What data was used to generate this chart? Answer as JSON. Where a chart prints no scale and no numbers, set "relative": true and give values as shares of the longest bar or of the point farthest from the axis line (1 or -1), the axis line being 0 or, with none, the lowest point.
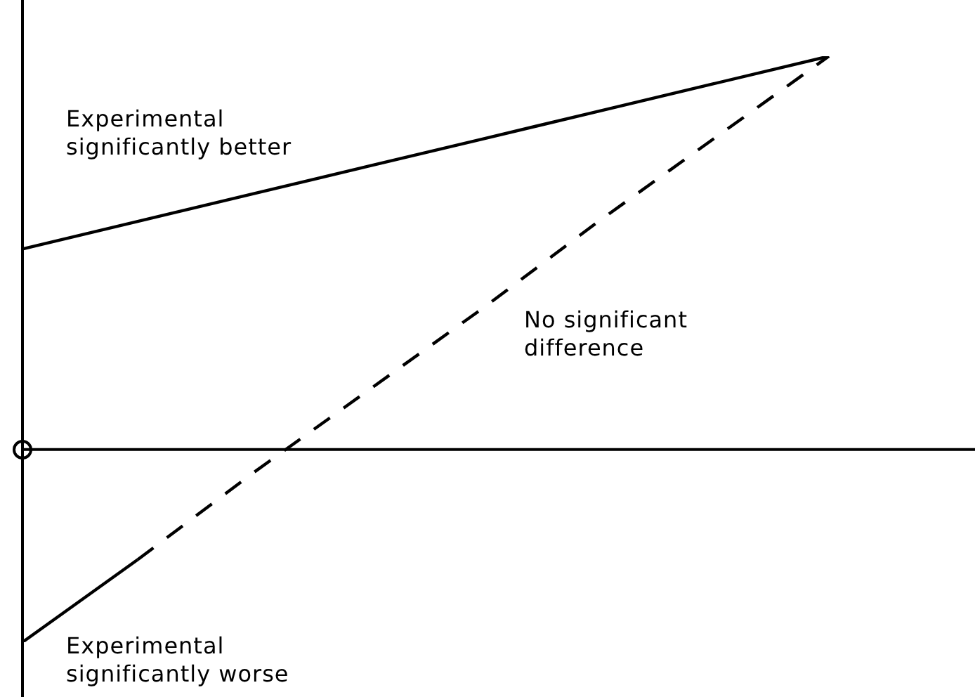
{
  "chart_data": {
    "type": "line",
    "relative": true,
    "marker": "none",
    "legend": false,
    "annotations": [
      "Experimental significantly better",
      "No significant difference",
      "Experimental significantly worse"
    ],
    "categories": [
      null,
      null,
      null,
      null,
      null,
      null,
      null,
      null
    ],
    "series": [
      {
        "color": "#000000",
        "line_style": "solid",
        "values": [
          0.51,
          0.58,
          0.65,
          0.72,
          0.79,
          0.86,
          0.93,
          1
        ]
      },
      {
        "color": "#000000",
        "line_style": "solid",
        "values": [
          -0.49,
          -0.28,
          null,
          null,
          null,
          null,
          null,
          null
        ]
      },
      {
        "color": "#000000",
        "line_style": "dashed",
        "values": [
          null,
          -0.28,
          -0.06,
          0.15,
          0.36,
          0.58,
          0.79,
          1
        ]
      }
    ]
  }
}
